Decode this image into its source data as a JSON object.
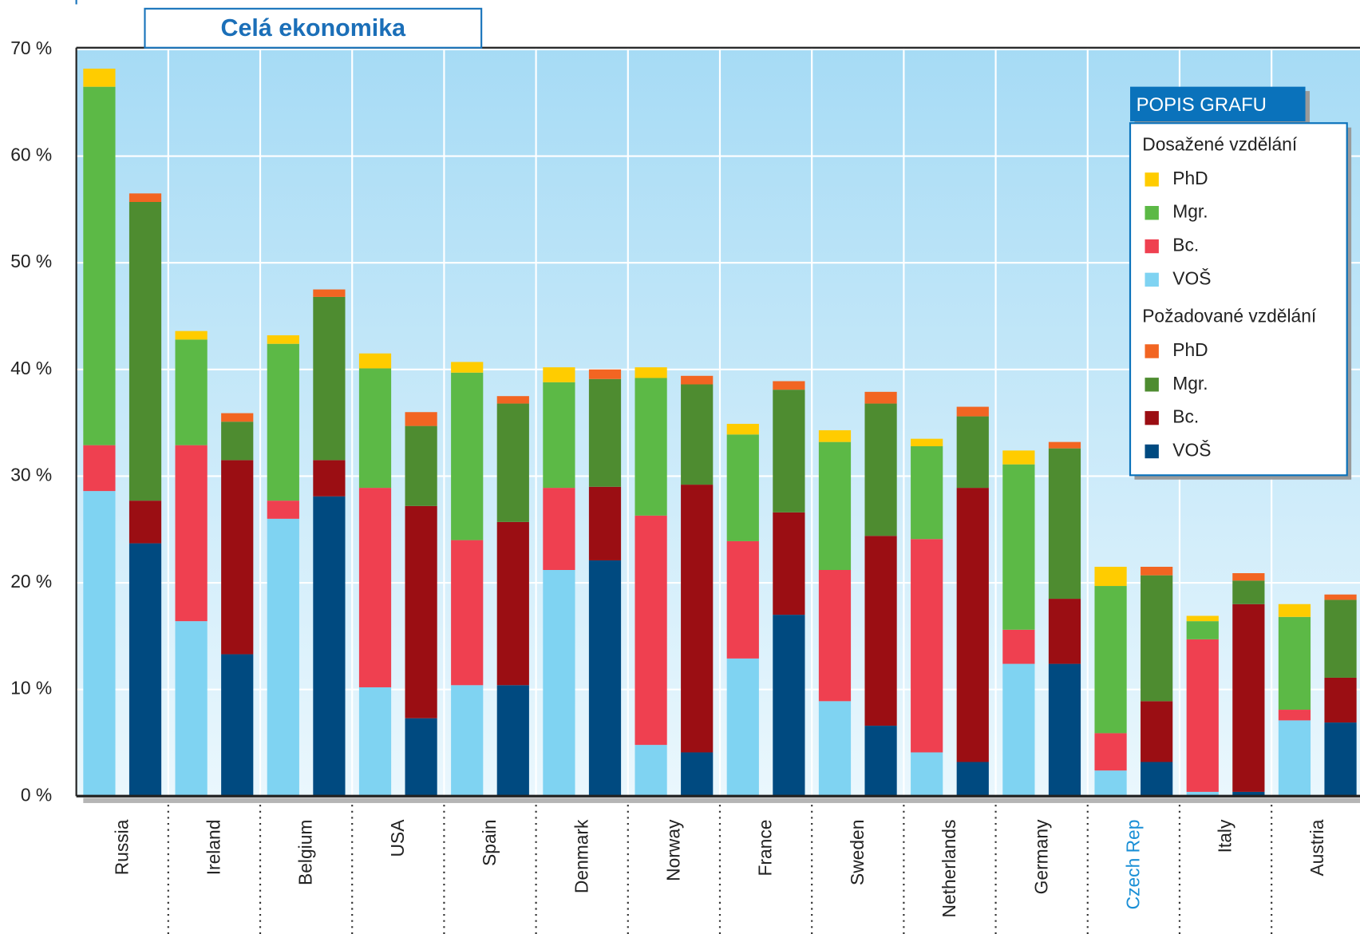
{
  "chart_data": {
    "type": "bar",
    "stacked": true,
    "title": "Celá ekonomika",
    "categories": [
      "Russia",
      "Ireland",
      "Belgium",
      "USA",
      "Spain",
      "Denmark",
      "Norway",
      "France",
      "Sweden",
      "Netherlands",
      "Germany",
      "Czech Rep",
      "Italy",
      "Austria"
    ],
    "highlight_index": 11,
    "highlight_color": "#1a8fd6",
    "legend": {
      "title": "POPIS GRAFU",
      "position": "upper right"
    },
    "series_groups": [
      {
        "name": "Dosažené vzdělání",
        "series": [
          {
            "name": "PhD",
            "color": "#ffcc00",
            "values": [
              1.7,
              0.8,
              0.8,
              1.4,
              1.0,
              1.4,
              1.0,
              1.0,
              1.1,
              0.7,
              1.3,
              1.8,
              0.5,
              1.2
            ]
          },
          {
            "name": "Mgr.",
            "color": "#5cb946",
            "values": [
              33.6,
              9.9,
              14.7,
              11.2,
              15.7,
              9.9,
              12.9,
              10.0,
              12.0,
              8.7,
              15.5,
              13.8,
              1.7,
              8.7
            ]
          },
          {
            "name": "Bc.",
            "color": "#ef4050",
            "values": [
              4.3,
              16.5,
              1.7,
              18.7,
              13.6,
              7.7,
              21.5,
              11.0,
              12.3,
              20.0,
              3.2,
              3.5,
              14.3,
              1.0
            ]
          },
          {
            "name": "VOŠ",
            "color": "#7fd3f2",
            "values": [
              28.6,
              16.4,
              26.0,
              10.2,
              10.4,
              21.2,
              4.8,
              12.9,
              8.9,
              4.1,
              12.4,
              2.4,
              0.4,
              7.1
            ]
          }
        ]
      },
      {
        "name": "Požadované vzdělání",
        "series": [
          {
            "name": "PhD",
            "color": "#f26522",
            "values": [
              0.8,
              0.8,
              0.7,
              1.3,
              0.7,
              0.9,
              0.8,
              0.8,
              1.1,
              0.9,
              0.6,
              0.8,
              0.7,
              0.5
            ]
          },
          {
            "name": "Mgr.",
            "color": "#4e8c30",
            "values": [
              28.0,
              3.6,
              15.3,
              7.5,
              11.1,
              10.1,
              9.4,
              11.5,
              12.4,
              6.7,
              14.1,
              11.8,
              2.2,
              7.3
            ]
          },
          {
            "name": "Bc.",
            "color": "#9b0e13",
            "values": [
              4.0,
              18.2,
              3.4,
              19.9,
              15.3,
              6.9,
              25.1,
              9.6,
              17.8,
              25.7,
              6.1,
              5.7,
              17.6,
              4.2
            ]
          },
          {
            "name": "VOŠ",
            "color": "#004a80",
            "values": [
              23.7,
              13.3,
              28.1,
              7.3,
              10.4,
              22.1,
              4.1,
              17.0,
              6.6,
              3.2,
              12.4,
              3.2,
              0.4,
              6.9
            ]
          }
        ]
      }
    ],
    "ylim": [
      0,
      70
    ],
    "yticks": [
      {
        "value": 0,
        "label": "0 %"
      },
      {
        "value": 10,
        "label": "10 %"
      },
      {
        "value": 20,
        "label": "20 %"
      },
      {
        "value": 30,
        "label": "30 %"
      },
      {
        "value": 40,
        "label": "40 %"
      },
      {
        "value": 50,
        "label": "50 %"
      },
      {
        "value": 60,
        "label": "60 %"
      },
      {
        "value": 70,
        "label": "70 %"
      }
    ],
    "grid": true
  }
}
